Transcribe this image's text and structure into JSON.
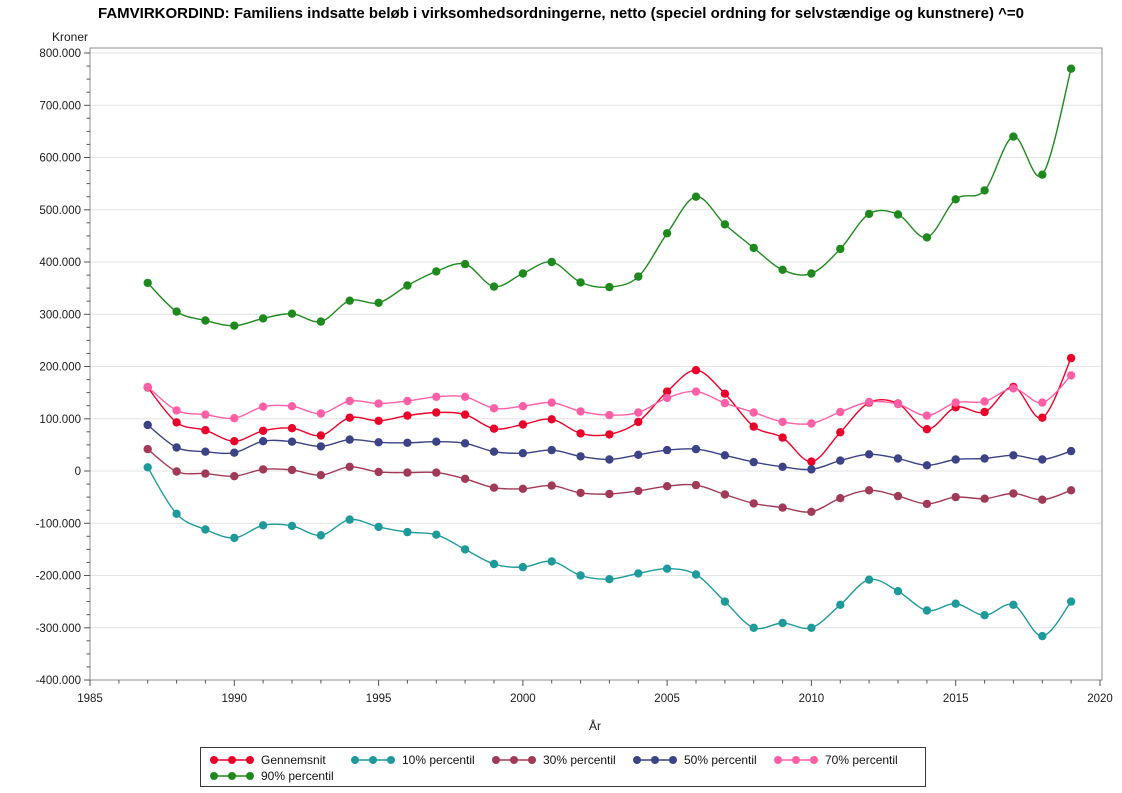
{
  "title": "FAMVIRKORDIND: Familiens indsatte beløb i virksomhedsordningerne, netto (speciel ordning for selvstændige og kunstnere) ^=0",
  "chart_data": {
    "type": "line",
    "title": "FAMVIRKORDIND: Familiens indsatte beløb i virksomhedsordningerne, netto (speciel ordning for selvstændige og kunstnere) ^=0",
    "xlabel": "År",
    "ylabel": "Kroner",
    "xlim": [
      1985,
      2020
    ],
    "ylim": [
      -400000,
      800000
    ],
    "grid": "horizontal",
    "legend_position": "bottom",
    "marker": "circle-line",
    "x_major_ticks": [
      1985,
      1990,
      1995,
      2000,
      2005,
      2010,
      2015,
      2020
    ],
    "x_tick_labels": [
      "1985",
      "1990",
      "1995",
      "2000",
      "2005",
      "2010",
      "2015",
      "2020"
    ],
    "x_minor_step": 1,
    "y_major_ticks": [
      800000,
      700000,
      600000,
      500000,
      400000,
      300000,
      200000,
      100000,
      0,
      -100000,
      -200000,
      -300000,
      -400000
    ],
    "y_tick_labels": [
      "800.000",
      "700.000",
      "600.000",
      "500.000",
      "400.000",
      "300.000",
      "200.000",
      "100.000",
      "0",
      "-100.000",
      "-200.000",
      "-300.000",
      "-400.000"
    ],
    "y_minor_step": 25000,
    "x": [
      1987,
      1988,
      1989,
      1990,
      1991,
      1992,
      1993,
      1994,
      1995,
      1996,
      1997,
      1998,
      1999,
      2000,
      2001,
      2002,
      2003,
      2004,
      2005,
      2006,
      2007,
      2008,
      2009,
      2010,
      2011,
      2012,
      2013,
      2014,
      2015,
      2016,
      2017,
      2018,
      2019
    ],
    "series": [
      {
        "name": "Gennemsnit",
        "color": "#ea0029",
        "values": [
          160000,
          93000,
          78000,
          57000,
          77000,
          82000,
          68000,
          102000,
          96000,
          106000,
          112000,
          108000,
          81000,
          89000,
          99000,
          72000,
          70000,
          94000,
          152000,
          193000,
          148000,
          85000,
          64000,
          18000,
          74000,
          131000,
          129000,
          80000,
          122000,
          113000,
          161000,
          102000,
          216000
        ]
      },
      {
        "name": "10% percentil",
        "color": "#1f9a9a",
        "values": [
          7000,
          -82000,
          -112000,
          -128000,
          -104000,
          -105000,
          -123000,
          -93000,
          -107000,
          -117000,
          -122000,
          -150000,
          -178000,
          -184000,
          -173000,
          -200000,
          -207000,
          -196000,
          -187000,
          -198000,
          -250000,
          -300000,
          -291000,
          -300000,
          -256000,
          -208000,
          -230000,
          -267000,
          -254000,
          -276000,
          -256000,
          -316000,
          -250000
        ]
      },
      {
        "name": "30% percentil",
        "color": "#a13a57",
        "values": [
          42000,
          -1000,
          -5000,
          -10000,
          3000,
          2000,
          -8000,
          8000,
          -2000,
          -3000,
          -3000,
          -15000,
          -32000,
          -34000,
          -28000,
          -42000,
          -44000,
          -38000,
          -29000,
          -27000,
          -45000,
          -62000,
          -70000,
          -78000,
          -52000,
          -37000,
          -48000,
          -63000,
          -50000,
          -53000,
          -43000,
          -55000,
          -37000
        ]
      },
      {
        "name": "50% percentil",
        "color": "#3b4285",
        "values": [
          88000,
          45000,
          37000,
          35000,
          57000,
          56000,
          47000,
          60000,
          55000,
          54000,
          56000,
          53000,
          37000,
          34000,
          40000,
          28000,
          22000,
          31000,
          40000,
          42000,
          30000,
          17000,
          8000,
          3000,
          20000,
          32000,
          24000,
          11000,
          22000,
          24000,
          30000,
          22000,
          38000
        ]
      },
      {
        "name": "70% percentil",
        "color": "#ff5fa7",
        "values": [
          161000,
          116000,
          108000,
          101000,
          123000,
          124000,
          110000,
          134000,
          129000,
          134000,
          142000,
          142000,
          120000,
          124000,
          131000,
          114000,
          107000,
          112000,
          140000,
          152000,
          130000,
          112000,
          94000,
          91000,
          113000,
          132000,
          128000,
          106000,
          131000,
          133000,
          158000,
          131000,
          183000
        ]
      },
      {
        "name": "90% percentil",
        "color": "#1e8a1e",
        "values": [
          360000,
          305000,
          288000,
          278000,
          292000,
          301000,
          286000,
          326000,
          322000,
          355000,
          382000,
          396000,
          353000,
          378000,
          400000,
          361000,
          352000,
          372000,
          455000,
          525000,
          472000,
          427000,
          385000,
          378000,
          425000,
          492000,
          491000,
          447000,
          520000,
          537000,
          640000,
          567000,
          770000
        ]
      }
    ]
  }
}
